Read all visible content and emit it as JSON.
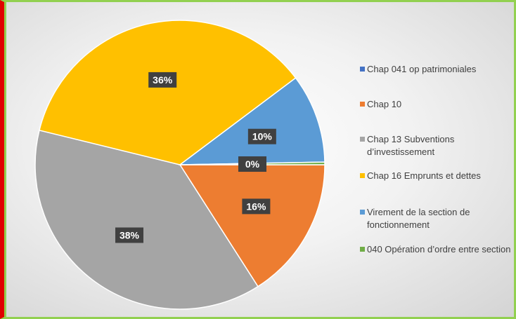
{
  "chart_data": {
    "type": "pie",
    "categories": [
      "Chap 041 op patrimoniales",
      "Chap 10",
      "Chap 13 Subventions d’investissement",
      "Chap 16 Emprunts et dettes",
      "Virement de la section de fonctionnement",
      "040 Opération d’ordre entre section"
    ],
    "values": [
      0,
      16,
      38,
      36,
      10,
      0.3
    ],
    "value_labels": [
      null,
      "16%",
      "38%",
      "36%",
      "10%",
      "0%"
    ],
    "colors": [
      "#4472c4",
      "#ed7d31",
      "#a5a5a5",
      "#ffc000",
      "#5b9bd5",
      "#70ad47"
    ],
    "legend": "right"
  }
}
